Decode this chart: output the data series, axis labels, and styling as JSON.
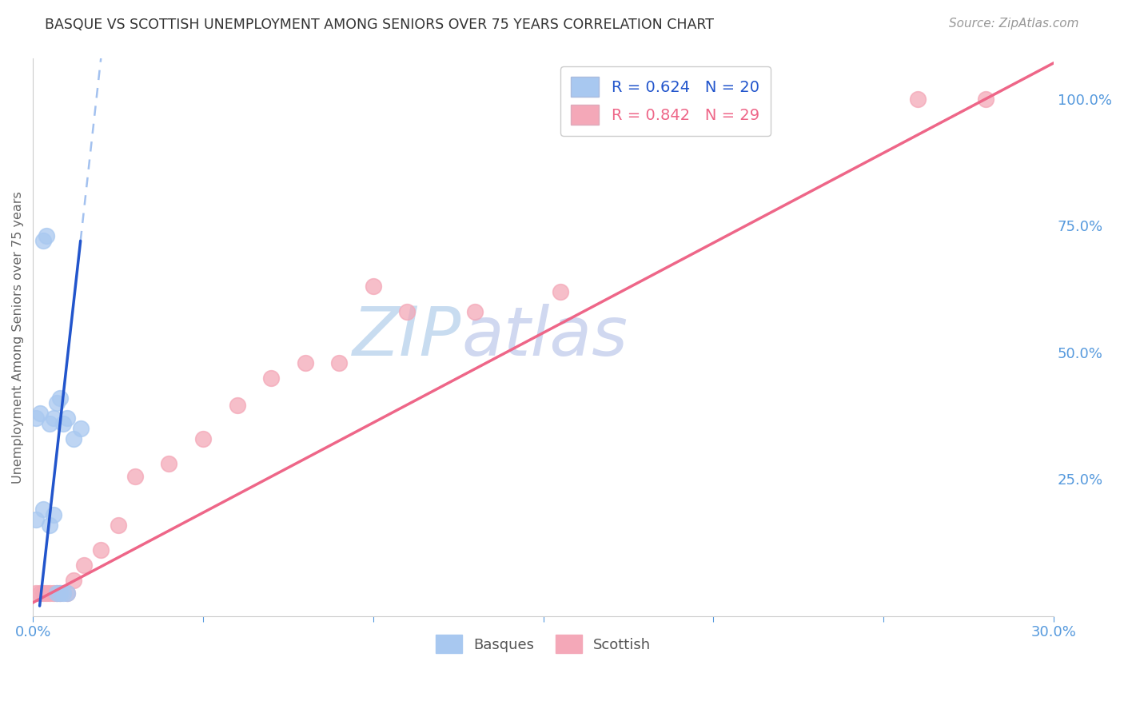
{
  "title": "BASQUE VS SCOTTISH UNEMPLOYMENT AMONG SENIORS OVER 75 YEARS CORRELATION CHART",
  "source": "Source: ZipAtlas.com",
  "ylabel": "Unemployment Among Seniors over 75 years",
  "basque_R": 0.624,
  "basque_N": 20,
  "scottish_R": 0.842,
  "scottish_N": 29,
  "xlim": [
    0.0,
    0.3
  ],
  "ylim": [
    -0.02,
    1.08
  ],
  "x_ticks": [
    0.0,
    0.05,
    0.1,
    0.15,
    0.2,
    0.25,
    0.3
  ],
  "x_tick_labels": [
    "0.0%",
    "",
    "",
    "",
    "",
    "",
    "30.0%"
  ],
  "y_ticks_right": [
    0.25,
    0.5,
    0.75,
    1.0
  ],
  "y_tick_labels_right": [
    "25.0%",
    "50.0%",
    "75.0%",
    "100.0%"
  ],
  "basque_color": "#A8C8F0",
  "scottish_color": "#F4A8B8",
  "basque_line_color": "#2255CC",
  "scottish_line_color": "#EE6688",
  "basque_line_dash_color": "#99BBEE",
  "watermark_zip_color": "#C8DCF0",
  "watermark_atlas_color": "#D0D8F0",
  "grid_color": "#DDDDDD",
  "axis_color": "#5599DD",
  "title_color": "#333333",
  "basque_pts_x": [
    0.001,
    0.002,
    0.003,
    0.004,
    0.005,
    0.006,
    0.007,
    0.008,
    0.009,
    0.01,
    0.012,
    0.014,
    0.001,
    0.003,
    0.005,
    0.006,
    0.007,
    0.008,
    0.009,
    0.01
  ],
  "basque_pts_y": [
    0.37,
    0.38,
    0.72,
    0.73,
    0.36,
    0.37,
    0.4,
    0.41,
    0.36,
    0.37,
    0.33,
    0.35,
    0.17,
    0.19,
    0.16,
    0.18,
    0.025,
    0.025,
    0.025,
    0.025
  ],
  "scottish_pts_x": [
    0.001,
    0.002,
    0.003,
    0.004,
    0.005,
    0.006,
    0.007,
    0.008,
    0.01,
    0.012,
    0.015,
    0.02,
    0.025,
    0.03,
    0.04,
    0.05,
    0.06,
    0.07,
    0.08,
    0.09,
    0.1,
    0.11,
    0.13,
    0.155,
    0.17,
    0.195,
    0.21,
    0.26,
    0.28
  ],
  "scottish_pts_y": [
    0.025,
    0.025,
    0.025,
    0.025,
    0.025,
    0.025,
    0.025,
    0.025,
    0.025,
    0.05,
    0.08,
    0.11,
    0.16,
    0.255,
    0.28,
    0.33,
    0.395,
    0.45,
    0.48,
    0.48,
    0.63,
    0.58,
    0.58,
    0.62,
    1.0,
    1.0,
    1.0,
    1.0,
    1.0
  ],
  "marker_size": 200,
  "marker_linewidth": 1.2
}
